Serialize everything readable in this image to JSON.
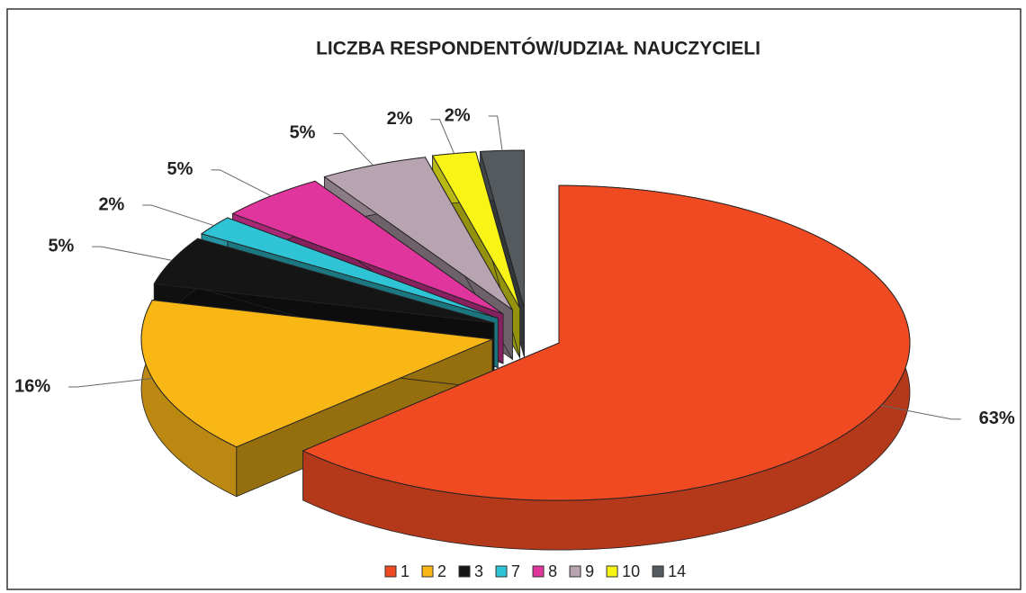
{
  "chart_data": {
    "type": "pie",
    "title": "LICZBA RESPONDENTÓW/UDZIAŁ NAUCZYCIELI",
    "categories": [
      "1",
      "2",
      "3",
      "7",
      "8",
      "9",
      "10",
      "14"
    ],
    "values": [
      63,
      16,
      5,
      2,
      5,
      5,
      2,
      2
    ],
    "value_labels": [
      "63%",
      "16%",
      "5%",
      "2%",
      "5%",
      "5%",
      "2%",
      "2%"
    ],
    "colors": [
      "#f04a23",
      "#f9b716",
      "#151515",
      "#2ec4d6",
      "#e0359c",
      "#b8a4b0",
      "#f7f416",
      "#555a5e"
    ],
    "legend": "bottom"
  }
}
